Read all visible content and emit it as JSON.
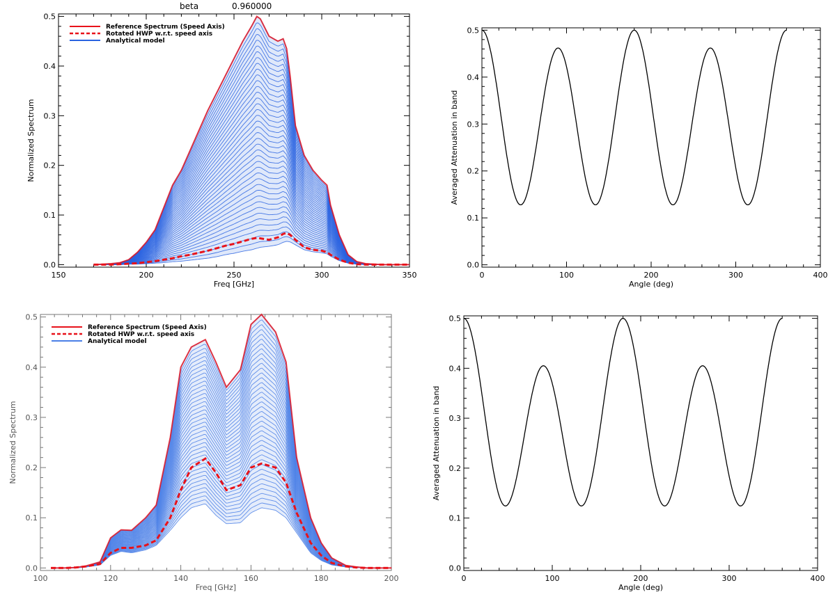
{
  "figure_title": {
    "label": "beta",
    "value": "0.960000"
  },
  "chart_data": [
    {
      "id": "tl",
      "type": "line",
      "xlabel": "Freq [GHz]",
      "ylabel": "Normalized Spectrum",
      "xlim": [
        150,
        350
      ],
      "ylim": [
        -0.005,
        0.505
      ],
      "xticks": [
        "150",
        "200",
        "250",
        "300",
        "350"
      ],
      "yticks": [
        "0.0",
        "0.1",
        "0.2",
        "0.3",
        "0.4",
        "0.5"
      ],
      "legend_position": "top-left",
      "legend": [
        "Reference Spectrum (Speed Axis)",
        "Rotated HWP w.r.t. speed axis",
        "Analytical model"
      ],
      "colors": {
        "reference": "#e8121a",
        "rotated": "#e8121a",
        "model": "#2a63e0"
      },
      "x": [
        170,
        175,
        180,
        185,
        190,
        195,
        200,
        205,
        210,
        215,
        220,
        225,
        230,
        235,
        240,
        245,
        250,
        255,
        260,
        263,
        265,
        270,
        275,
        278,
        280,
        282,
        285,
        290,
        295,
        300,
        303,
        305,
        310,
        315,
        320,
        325,
        330,
        335,
        340,
        345,
        350
      ],
      "reference": [
        0.0,
        0.001,
        0.002,
        0.004,
        0.01,
        0.025,
        0.045,
        0.07,
        0.115,
        0.16,
        0.19,
        0.23,
        0.27,
        0.31,
        0.345,
        0.38,
        0.415,
        0.45,
        0.48,
        0.5,
        0.495,
        0.46,
        0.45,
        0.455,
        0.435,
        0.38,
        0.28,
        0.22,
        0.19,
        0.17,
        0.16,
        0.12,
        0.06,
        0.02,
        0.006,
        0.002,
        0.001,
        0.0,
        0.0,
        0.0,
        0.0
      ],
      "rotated": [
        0.0,
        0.0,
        0.0,
        0.001,
        0.002,
        0.003,
        0.005,
        0.007,
        0.01,
        0.013,
        0.017,
        0.02,
        0.024,
        0.028,
        0.033,
        0.038,
        0.042,
        0.047,
        0.052,
        0.054,
        0.053,
        0.05,
        0.055,
        0.062,
        0.064,
        0.06,
        0.05,
        0.035,
        0.03,
        0.028,
        0.025,
        0.02,
        0.01,
        0.004,
        0.001,
        0.0,
        0.0,
        0.0,
        0.0,
        0.0,
        0.0
      ],
      "model_min": [
        0.0,
        0.0,
        0.0,
        0.0,
        0.001,
        0.001,
        0.002,
        0.003,
        0.004,
        0.006,
        0.007,
        0.009,
        0.011,
        0.013,
        0.016,
        0.02,
        0.023,
        0.027,
        0.03,
        0.033,
        0.035,
        0.037,
        0.04,
        0.045,
        0.047,
        0.046,
        0.04,
        0.03,
        0.026,
        0.024,
        0.022,
        0.017,
        0.008,
        0.003,
        0.001,
        0.0,
        0.0,
        0.0,
        0.0,
        0.0,
        0.0
      ],
      "model_curves": 40
    },
    {
      "id": "tr",
      "type": "line",
      "xlabel": "Angle (deg)",
      "ylabel": "Averaged Attenuation in band",
      "xlim": [
        0,
        400
      ],
      "ylim": [
        -0.005,
        0.505
      ],
      "xticks": [
        "0",
        "100",
        "200",
        "300",
        "400"
      ],
      "yticks": [
        "0.0",
        "0.1",
        "0.2",
        "0.3",
        "0.4",
        "0.5"
      ],
      "color": "#000000",
      "angle_range": [
        0,
        360
      ],
      "values_at": {
        "angles": [
          0,
          45,
          90,
          135,
          180,
          225,
          270,
          315,
          360
        ],
        "values": [
          0.5,
          0.128,
          0.462,
          0.128,
          0.5,
          0.128,
          0.462,
          0.128,
          0.5
        ]
      }
    },
    {
      "id": "bl",
      "type": "line",
      "xlabel": "Freq [GHz]",
      "ylabel": "Normalized Spectrum",
      "xlim": [
        100,
        200
      ],
      "ylim": [
        -0.005,
        0.505
      ],
      "xticks": [
        "100",
        "120",
        "140",
        "160",
        "180",
        "200"
      ],
      "yticks": [
        "0.0",
        "0.1",
        "0.2",
        "0.3",
        "0.4",
        "0.5"
      ],
      "legend_position": "top-left",
      "legend": [
        "Reference Spectrum (Speed Axis)",
        "Rotated HWP w.r.t. speed axis",
        "Analytical model"
      ],
      "colors": {
        "reference": "#e8121a",
        "rotated": "#e8121a",
        "model": "#4a7fe6"
      },
      "x": [
        103,
        107,
        110,
        113,
        117,
        120,
        123,
        126,
        130,
        133,
        137,
        140,
        143,
        147,
        150,
        153,
        157,
        160,
        163,
        167,
        170,
        173,
        177,
        180,
        183,
        187,
        190,
        193,
        197,
        200
      ],
      "reference": [
        0.0,
        0.0,
        0.001,
        0.004,
        0.012,
        0.06,
        0.076,
        0.075,
        0.1,
        0.125,
        0.26,
        0.4,
        0.44,
        0.455,
        0.41,
        0.36,
        0.395,
        0.485,
        0.505,
        0.47,
        0.41,
        0.22,
        0.1,
        0.05,
        0.02,
        0.005,
        0.002,
        0.0,
        0.0,
        0.0
      ],
      "rotated": [
        0.0,
        0.0,
        0.001,
        0.003,
        0.008,
        0.03,
        0.04,
        0.04,
        0.045,
        0.055,
        0.1,
        0.155,
        0.2,
        0.218,
        0.19,
        0.155,
        0.165,
        0.2,
        0.208,
        0.2,
        0.17,
        0.11,
        0.05,
        0.025,
        0.01,
        0.003,
        0.001,
        0.0,
        0.0,
        0.0
      ],
      "model_min": [
        0.0,
        0.0,
        0.0,
        0.002,
        0.006,
        0.025,
        0.033,
        0.03,
        0.036,
        0.045,
        0.075,
        0.1,
        0.12,
        0.128,
        0.105,
        0.088,
        0.09,
        0.11,
        0.12,
        0.115,
        0.1,
        0.07,
        0.03,
        0.015,
        0.006,
        0.002,
        0.001,
        0.0,
        0.0,
        0.0
      ],
      "model_curves": 40
    },
    {
      "id": "br",
      "type": "line",
      "xlabel": "Angle (deg)",
      "ylabel": "Averaged Attenuation in band",
      "xlim": [
        0,
        400
      ],
      "ylim": [
        -0.005,
        0.505
      ],
      "xticks": [
        "0",
        "100",
        "200",
        "300",
        "400"
      ],
      "yticks": [
        "0.0",
        "0.1",
        "0.2",
        "0.3",
        "0.4",
        "0.5"
      ],
      "color": "#000000",
      "angle_range": [
        0,
        360
      ],
      "values_at": {
        "angles": [
          0,
          45,
          90,
          135,
          180,
          225,
          270,
          315,
          360
        ],
        "values": [
          0.5,
          0.126,
          0.405,
          0.126,
          0.5,
          0.126,
          0.405,
          0.126,
          0.5
        ]
      }
    }
  ]
}
